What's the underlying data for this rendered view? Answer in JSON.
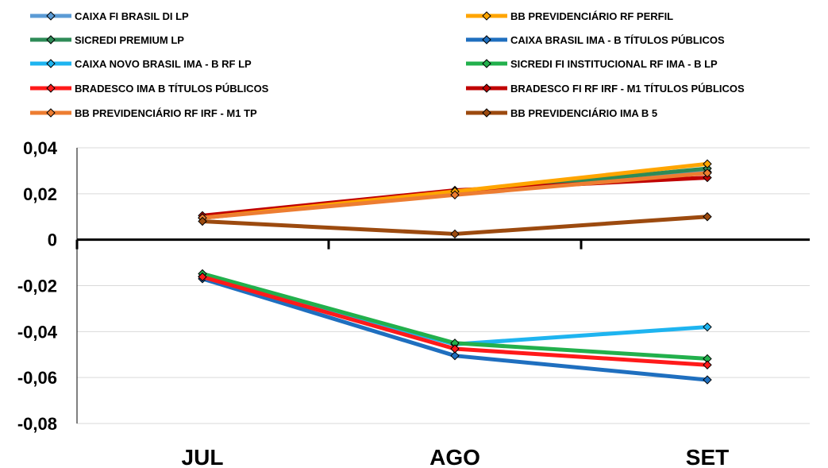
{
  "chart_data": {
    "type": "line",
    "title": "",
    "xlabel": "",
    "ylabel": "",
    "categories": [
      "JUL",
      "AGO",
      "SET"
    ],
    "ylim": [
      -0.08,
      0.04
    ],
    "yticks": [
      0.04,
      0.02,
      0,
      -0.02,
      -0.04,
      -0.06,
      -0.08
    ],
    "ytick_labels": [
      "0,04",
      "0,02",
      "0",
      "-0,02",
      "-0,04",
      "-0,06",
      "-0,08"
    ],
    "grid": true,
    "legend_position": "top",
    "series": [
      {
        "name": "CAIXA FI BRASIL DI LP",
        "color": "#5b9bd5",
        "values": [
          0.0095,
          0.0205,
          0.0295
        ]
      },
      {
        "name": "BB PREVIDENCIÁRIO RF PERFIL",
        "color": "#ffa500",
        "values": [
          0.0095,
          0.021,
          0.033
        ]
      },
      {
        "name": "SICREDI PREMIUM LP",
        "color": "#2e8b57",
        "values": [
          0.0095,
          0.0205,
          0.031
        ]
      },
      {
        "name": "CAIXA BRASIL IMA - B TÍTULOS PÚBLICOS",
        "color": "#1f6fbf",
        "values": [
          -0.017,
          -0.0505,
          -0.061
        ]
      },
      {
        "name": "CAIXA NOVO BRASIL IMA - B RF LP",
        "color": "#1eb4f0",
        "values": [
          -0.016,
          -0.0455,
          -0.038
        ]
      },
      {
        "name": "SICREDI FI INSTITUCIONAL RF IMA - B LP",
        "color": "#22b04c",
        "values": [
          -0.0148,
          -0.045,
          -0.0518
        ]
      },
      {
        "name": "BRADESCO IMA B TÍTULOS PÚBLICOS",
        "color": "#ff1a1a",
        "values": [
          -0.0162,
          -0.0475,
          -0.0545
        ]
      },
      {
        "name": "BRADESCO FI RF IRF - M1 TÍTULOS PÚBLICOS",
        "color": "#c00000",
        "values": [
          0.0105,
          0.0215,
          0.027
        ]
      },
      {
        "name": "BB PREVIDENCIÁRIO RF IRF - M1 TP",
        "color": "#ed7d31",
        "values": [
          0.0095,
          0.0195,
          0.029
        ]
      },
      {
        "name": "BB PREVIDENCIÁRIO IMA B 5",
        "color": "#9c4a0f",
        "values": [
          0.008,
          0.0025,
          0.01
        ]
      }
    ]
  }
}
